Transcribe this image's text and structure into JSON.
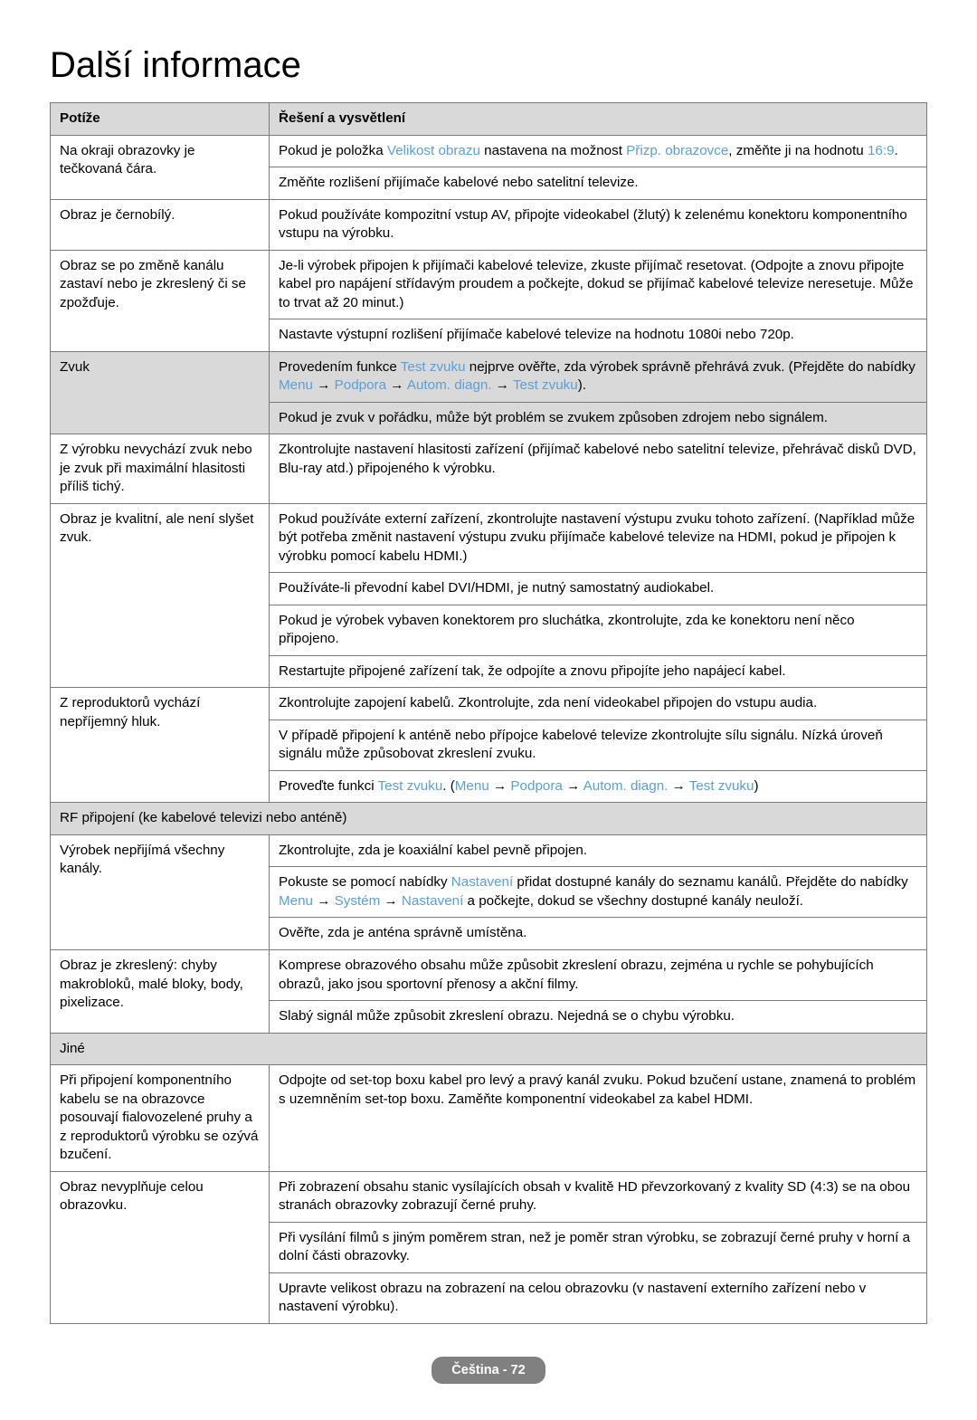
{
  "page": {
    "title": "Další informace",
    "footer": "Čeština - 72"
  },
  "headers": {
    "col1": "Potíže",
    "col2": "Řešení a vysvětlení"
  },
  "colors": {
    "link": "#5aa0d8",
    "header_bg": "#d9d9d9",
    "border": "#7a7a7a",
    "badge_bg": "#808080",
    "badge_text": "#ffffff"
  },
  "rows": {
    "r1_issue": "Na okraji obrazovky je tečkovaná čára.",
    "r1_sol_a_pre": "Pokud je položka ",
    "r1_sol_a_l1": "Velikost obrazu",
    "r1_sol_a_mid": " nastavena na možnost ",
    "r1_sol_a_l2": "Přizp. obrazovce",
    "r1_sol_a_mid2": ", změňte ji na hodnotu ",
    "r1_sol_a_l3": "16:9",
    "r1_sol_a_post": ".",
    "r1_sol_b": "Změňte rozlišení přijímače kabelové nebo satelitní televize.",
    "r2_issue": "Obraz je černobílý.",
    "r2_sol": "Pokud používáte kompozitní vstup AV, připojte videokabel (žlutý) k zelenému konektoru komponentního vstupu na výrobku.",
    "r3_issue": "Obraz se po změně kanálu zastaví nebo je zkreslený či se zpožďuje.",
    "r3_sol_a": "Je-li výrobek připojen k přijímači kabelové televize, zkuste přijímač resetovat. (Odpojte a znovu připojte kabel pro napájení střídavým proudem a počkejte, dokud se přijímač kabelové televize neresetuje. Může to trvat až 20 minut.)",
    "r3_sol_b": "Nastavte výstupní rozlišení přijímače kabelové televize na hodnotu 1080i nebo 720p.",
    "r4_issue": "Zvuk",
    "r4_sol_a_pre": "Provedením funkce ",
    "r4_sol_a_l1": "Test zvuku",
    "r4_sol_a_mid": " nejprve ověřte, zda výrobek správně přehrává zvuk. (Přejděte do nabídky ",
    "r4_sol_a_l2": "Menu",
    "r4_sol_a_arrow": " → ",
    "r4_sol_a_l3": "Podpora",
    "r4_sol_a_l4": "Autom. diagn.",
    "r4_sol_a_l5": "Test zvuku",
    "r4_sol_a_post": ").",
    "r4_sol_b": "Pokud je zvuk v pořádku, může být problém se zvukem způsoben zdrojem nebo signálem.",
    "r5_issue": "Z výrobku nevychází zvuk nebo je zvuk při maximální hlasitosti příliš tichý.",
    "r5_sol": "Zkontrolujte nastavení hlasitosti zařízení (přijímač kabelové nebo satelitní televize, přehrávač disků DVD, Blu-ray atd.) připojeného k výrobku.",
    "r6_issue": "Obraz je kvalitní, ale není slyšet zvuk.",
    "r6_sol_a": "Pokud používáte externí zařízení, zkontrolujte nastavení výstupu zvuku tohoto zařízení. (Například může být potřeba změnit nastavení výstupu zvuku přijímače kabelové televize na HDMI, pokud je připojen k výrobku pomocí kabelu HDMI.)",
    "r6_sol_b": "Používáte-li převodní kabel DVI/HDMI, je nutný samostatný audiokabel.",
    "r6_sol_c": "Pokud je výrobek vybaven konektorem pro sluchátka, zkontrolujte, zda ke konektoru není něco připojeno.",
    "r6_sol_d": "Restartujte připojené zařízení tak, že odpojíte a znovu připojíte jeho napájecí kabel.",
    "r7_issue": "Z reproduktorů vychází nepříjemný hluk.",
    "r7_sol_a": "Zkontrolujte zapojení kabelů. Zkontrolujte, zda není videokabel připojen do vstupu audia.",
    "r7_sol_b": "V případě připojení k anténě nebo přípojce kabelové televize zkontrolujte sílu signálu. Nízká úroveň signálu může způsobovat zkreslení zvuku.",
    "r7_sol_c_pre": "Proveďte funkci ",
    "r7_sol_c_l1": "Test zvuku",
    "r7_sol_c_mid": ". (",
    "r7_sol_c_l2": "Menu",
    "r7_sol_c_l3": "Podpora",
    "r7_sol_c_l4": "Autom. diagn.",
    "r7_sol_c_l5": "Test zvuku",
    "r7_sol_c_post": ")",
    "sec_rf": "RF připojení (ke kabelové televizi nebo anténě)",
    "r8_issue": "Výrobek nepřijímá všechny kanály.",
    "r8_sol_a": "Zkontrolujte, zda je koaxiální kabel pevně připojen.",
    "r8_sol_b_pre": "Pokuste se pomocí nabídky ",
    "r8_sol_b_l1": "Nastavení",
    "r8_sol_b_mid1": " přidat dostupné kanály do seznamu kanálů. Přejděte do nabídky ",
    "r8_sol_b_l2": "Menu",
    "r8_sol_b_l3": "Systém",
    "r8_sol_b_l4": "Nastavení",
    "r8_sol_b_post": " a počkejte, dokud se všechny dostupné kanály neuloží.",
    "r8_sol_c": "Ověřte, zda je anténa správně umístěna.",
    "r9_issue": "Obraz je zkreslený: chyby makrobloků, malé bloky, body, pixelizace.",
    "r9_sol_a": "Komprese obrazového obsahu může způsobit zkreslení obrazu, zejména u rychle se pohybujících obrazů, jako jsou sportovní přenosy a akční filmy.",
    "r9_sol_b": "Slabý signál může způsobit zkreslení obrazu. Nejedná se o chybu výrobku.",
    "sec_other": "Jiné",
    "r10_issue": "Při připojení komponentního kabelu se na obrazovce posouvají fialovozelené pruhy a z reproduktorů výrobku se ozývá bzučení.",
    "r10_sol": "Odpojte od set-top boxu kabel pro levý a pravý kanál zvuku. Pokud bzučení ustane, znamená to problém s uzemněním set-top boxu. Zaměňte komponentní videokabel za kabel HDMI.",
    "r11_issue": "Obraz nevyplňuje celou obrazovku.",
    "r11_sol_a": "Při zobrazení obsahu stanic vysílajících obsah v kvalitě HD převzorkovaný z kvality SD (4:3) se na obou stranách obrazovky zobrazují černé pruhy.",
    "r11_sol_b": "Při vysílání filmů s jiným poměrem stran, než je poměr stran výrobku, se zobrazují černé pruhy v horní a dolní části obrazovky.",
    "r11_sol_c": "Upravte velikost obrazu na zobrazení na celou obrazovku (v nastavení externího zařízení nebo v nastavení výrobku)."
  }
}
